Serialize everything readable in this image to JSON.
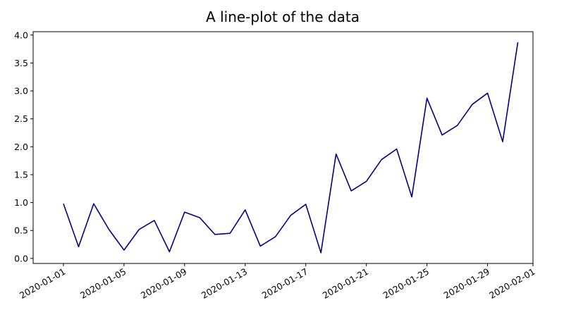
{
  "chart_data": {
    "type": "line",
    "title": "A line-plot of the data",
    "xlabel": "",
    "ylabel": "",
    "x_axis_kind": "date",
    "x": [
      "2020-01-01",
      "2020-01-02",
      "2020-01-03",
      "2020-01-04",
      "2020-01-05",
      "2020-01-06",
      "2020-01-07",
      "2020-01-08",
      "2020-01-09",
      "2020-01-10",
      "2020-01-11",
      "2020-01-12",
      "2020-01-13",
      "2020-01-14",
      "2020-01-15",
      "2020-01-16",
      "2020-01-17",
      "2020-01-18",
      "2020-01-19",
      "2020-01-20",
      "2020-01-21",
      "2020-01-22",
      "2020-01-23",
      "2020-01-24",
      "2020-01-25",
      "2020-01-26",
      "2020-01-27",
      "2020-01-28",
      "2020-01-29",
      "2020-01-30",
      "2020-01-31"
    ],
    "series": [
      {
        "values": [
          0.98,
          0.21,
          0.98,
          0.52,
          0.15,
          0.52,
          0.68,
          0.12,
          0.83,
          0.73,
          0.43,
          0.45,
          0.87,
          0.22,
          0.39,
          0.77,
          0.97,
          0.1,
          1.87,
          1.21,
          1.38,
          1.77,
          1.96,
          1.1,
          2.87,
          2.21,
          2.38,
          2.76,
          2.96,
          2.09,
          3.87
        ],
        "color": "#000080"
      }
    ],
    "xlim": [
      "2019-12-30",
      "2020-02-01"
    ],
    "ylim": [
      -0.09,
      4.06
    ],
    "x_ticks": [
      "2020-01-01",
      "2020-01-05",
      "2020-01-09",
      "2020-01-13",
      "2020-01-17",
      "2020-01-21",
      "2020-01-25",
      "2020-01-29",
      "2020-02-01"
    ],
    "y_ticks": [
      "0.0",
      "0.5",
      "1.0",
      "1.5",
      "2.0",
      "2.5",
      "3.0",
      "3.5",
      "4.0"
    ],
    "grid": false,
    "legend": "none"
  }
}
